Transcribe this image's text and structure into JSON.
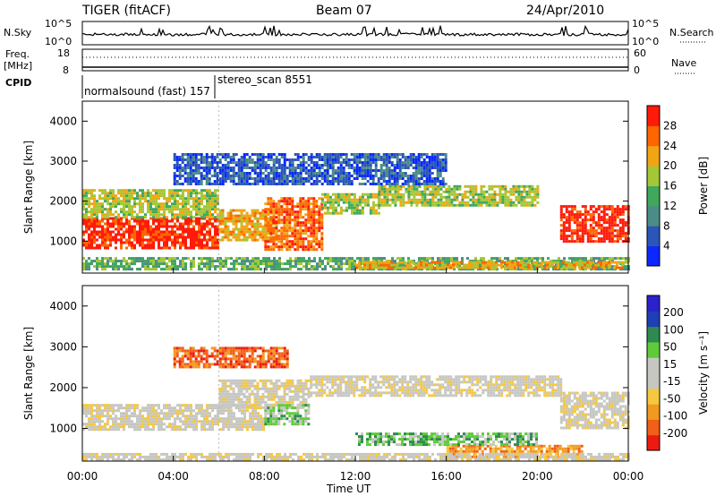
{
  "header": {
    "station": "TIGER (fitACF)",
    "beam": "Beam 07",
    "date": "24/Apr/2010"
  },
  "top_panels": {
    "nsky_label": "N.Sky",
    "nsky_top": "10^5",
    "nsky_bottom": "10^0",
    "nsearch_label": "N.Search",
    "nsearch_top": "10^5",
    "nsearch_bottom": "10^0",
    "freq_label_1": "Freq.",
    "freq_label_2": "[MHz]",
    "freq_top": "18",
    "freq_bottom": "8",
    "nave_label": "Nave",
    "nave_top": "60",
    "nave_bottom": "0",
    "cpid_label": "CPID",
    "cpid_1": "normalsound (fast) 157",
    "cpid_2": "stereo_scan 8551"
  },
  "colors": {
    "power": [
      "#0a28ff",
      "#2b56b8",
      "#4b8c86",
      "#3fa85a",
      "#a4c735",
      "#f2a514",
      "#ff6600",
      "#ff1a0a"
    ],
    "velocity": [
      "#ee1a12",
      "#f06018",
      "#f19a20",
      "#f6c840",
      "#c7c7c2",
      "#c7c7c2",
      "#5fcb3a",
      "#2f8a52",
      "#1e3fb6",
      "#2a22cc"
    ]
  },
  "chart_data": [
    {
      "type": "heatmap",
      "name": "power",
      "ylabel": "Slant Range [km]",
      "ylim": [
        200,
        4500
      ],
      "yticks": [
        "1000",
        "2000",
        "3000",
        "4000"
      ],
      "xlim": [
        0,
        24
      ],
      "xticks": [
        "00:00",
        "04:00",
        "08:00",
        "12:00",
        "16:00",
        "20:00",
        "00:00"
      ],
      "colorbar_label": "Power [dB]",
      "colorbar_ticks": [
        "4",
        "8",
        "12",
        "16",
        "20",
        "24",
        "28"
      ],
      "bands": [
        {
          "x": [
            0,
            6
          ],
          "ylo": 800,
          "yhi": 1600,
          "level": 7
        },
        {
          "x": [
            0,
            6
          ],
          "ylo": 1600,
          "yhi": 2300,
          "level": 4
        },
        {
          "x": [
            6,
            8.5
          ],
          "ylo": 1000,
          "yhi": 1800,
          "level": 5
        },
        {
          "x": [
            8,
            10.5
          ],
          "ylo": 800,
          "yhi": 2100,
          "level": 6
        },
        {
          "x": [
            10.5,
            13
          ],
          "ylo": 1700,
          "yhi": 2200,
          "level": 4
        },
        {
          "x": [
            13,
            20
          ],
          "ylo": 1900,
          "yhi": 2400,
          "level": 4
        },
        {
          "x": [
            21,
            24
          ],
          "ylo": 1000,
          "yhi": 1900,
          "level": 7
        },
        {
          "x": [
            0,
            24
          ],
          "ylo": 300,
          "yhi": 600,
          "level": 3
        },
        {
          "x": [
            12,
            24
          ],
          "ylo": 300,
          "yhi": 500,
          "level": 5
        },
        {
          "x": [
            4,
            16
          ],
          "ylo": 2400,
          "yhi": 3200,
          "level": 1
        }
      ]
    },
    {
      "type": "heatmap",
      "name": "velocity",
      "ylabel": "Slant Range [km]",
      "ylim": [
        200,
        4500
      ],
      "yticks": [
        "1000",
        "2000",
        "3000",
        "4000"
      ],
      "xlim": [
        0,
        24
      ],
      "xticks": [
        "00:00",
        "04:00",
        "08:00",
        "12:00",
        "16:00",
        "20:00",
        "00:00"
      ],
      "xlabel": "Time UT",
      "colorbar_label": "Velocity [m s⁻¹]",
      "colorbar_ticks": [
        "200",
        "100",
        "50",
        "15",
        "-15",
        "-50",
        "-100",
        "-200"
      ],
      "bands": [
        {
          "x": [
            0,
            8
          ],
          "ylo": 1000,
          "yhi": 1600,
          "level": 4
        },
        {
          "x": [
            6,
            10
          ],
          "ylo": 1500,
          "yhi": 2200,
          "level": 4
        },
        {
          "x": [
            10,
            21
          ],
          "ylo": 1800,
          "yhi": 2300,
          "level": 4
        },
        {
          "x": [
            21,
            24
          ],
          "ylo": 1000,
          "yhi": 1900,
          "level": 4
        },
        {
          "x": [
            8,
            10
          ],
          "ylo": 1100,
          "yhi": 1600,
          "level": 6
        },
        {
          "x": [
            4,
            9
          ],
          "ylo": 2500,
          "yhi": 3000,
          "level": 1
        },
        {
          "x": [
            16,
            22
          ],
          "ylo": 300,
          "yhi": 600,
          "level": 2
        },
        {
          "x": [
            0,
            24
          ],
          "ylo": 250,
          "yhi": 400,
          "level": 4
        },
        {
          "x": [
            12,
            20
          ],
          "ylo": 600,
          "yhi": 900,
          "level": 6
        }
      ]
    }
  ]
}
